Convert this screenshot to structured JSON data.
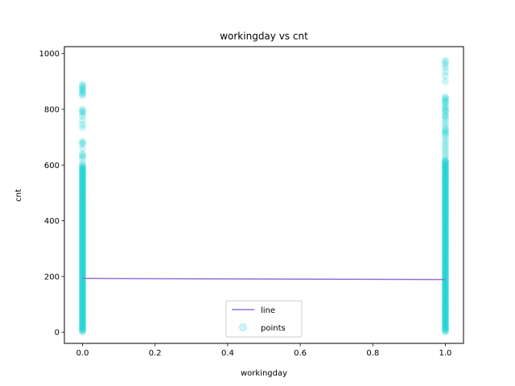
{
  "chart_data": {
    "type": "scatter",
    "title": "workingday vs cnt",
    "xlabel": "workingday",
    "ylabel": "cnt",
    "xlim": [
      -0.05,
      1.05
    ],
    "ylim": [
      -40,
      1025
    ],
    "x_ticks": [
      0.0,
      0.2,
      0.4,
      0.6,
      0.8,
      1.0
    ],
    "x_tick_labels": [
      "0.0",
      "0.2",
      "0.4",
      "0.6",
      "0.8",
      "1.0"
    ],
    "y_ticks": [
      0,
      200,
      400,
      600,
      800,
      1000
    ],
    "y_tick_labels": [
      "0",
      "200",
      "400",
      "600",
      "800",
      "1000"
    ],
    "grid": false,
    "legend": {
      "placement": "lower center",
      "entries": [
        "line",
        "points"
      ]
    },
    "series": [
      {
        "name": "line",
        "kind": "line",
        "color": "#9370db",
        "x": [
          0,
          1
        ],
        "y": [
          193,
          189
        ]
      },
      {
        "name": "points",
        "kind": "scatter",
        "color": "#00ced1",
        "alpha": 0.2,
        "groups": [
          {
            "x": 0,
            "y_dense_range": [
              1,
              600
            ],
            "y_sparse": [
              605,
              620,
              630,
              635,
              640,
              660,
              675,
              680,
              685,
              735,
              745,
              760,
              775,
              785,
              790,
              795,
              800,
              850,
              855,
              860,
              865,
              870,
              875,
              880,
              885,
              890
            ]
          },
          {
            "x": 1,
            "y_dense_range": [
              1,
              620
            ],
            "y_sparse": [
              630,
              640,
              650,
              660,
              670,
              680,
              690,
              700,
              710,
              715,
              720,
              725,
              730,
              740,
              750,
              760,
              770,
              775,
              780,
              790,
              795,
              800,
              805,
              810,
              820,
              825,
              830,
              835,
              840,
              845,
              900,
              920,
              935,
              950,
              960,
              970,
              975
            ]
          }
        ]
      }
    ]
  }
}
